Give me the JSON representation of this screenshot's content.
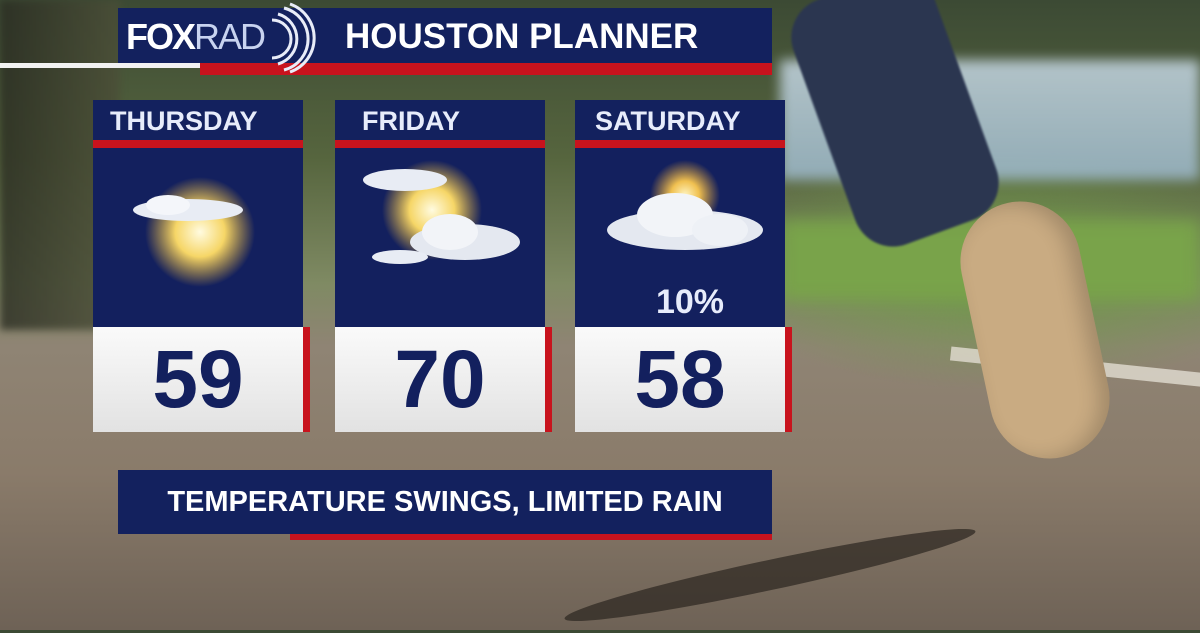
{
  "header": {
    "logo_text": "FOXRAD",
    "title": "HOUSTON PLANNER"
  },
  "forecast": [
    {
      "day": "THURSDAY",
      "icon": "sun-with-cloud-icon",
      "high": "59"
    },
    {
      "day": "FRIDAY",
      "icon": "partly-cloudy-icon",
      "high": "70"
    },
    {
      "day": "SATURDAY",
      "icon": "mostly-cloudy-icon",
      "rain_chance": "10%",
      "high": "58"
    }
  ],
  "banner": {
    "text": "TEMPERATURE SWINGS, LIMITED RAIN"
  },
  "colors": {
    "navy": "#13215e",
    "red": "#c8131d",
    "white": "#fafafa"
  }
}
